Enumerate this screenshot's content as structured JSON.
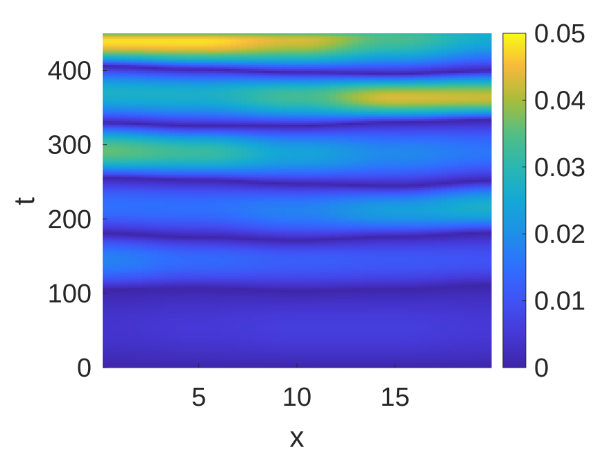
{
  "chart_data": {
    "type": "heatmap",
    "title": "",
    "xlabel": "x",
    "ylabel": "t",
    "xlim": [
      0.1,
      19.9
    ],
    "ylim": [
      0,
      450
    ],
    "xticks": [
      5,
      10,
      15
    ],
    "xtick_labels": [
      "5",
      "10",
      "15"
    ],
    "yticks": [
      0,
      100,
      200,
      300,
      400
    ],
    "ytick_labels": [
      "0",
      "100",
      "200",
      "300",
      "400"
    ],
    "colorbar": {
      "range": [
        0,
        0.05
      ],
      "ticks": [
        0,
        0.01,
        0.02,
        0.03,
        0.04,
        0.05
      ],
      "tick_labels": [
        "0",
        "0.01",
        "0.02",
        "0.03",
        "0.04",
        "0.05"
      ],
      "colormap": "parula"
    },
    "colormap_stops": [
      {
        "v": 0.0,
        "color": "#3e26a8"
      },
      {
        "v": 0.1,
        "color": "#4638d6"
      },
      {
        "v": 0.2,
        "color": "#4052f5"
      },
      {
        "v": 0.3,
        "color": "#2f6ffe"
      },
      {
        "v": 0.4,
        "color": "#1e8fe8"
      },
      {
        "v": 0.5,
        "color": "#14a8d6"
      },
      {
        "v": 0.6,
        "color": "#2ab7b2"
      },
      {
        "v": 0.7,
        "color": "#52be84"
      },
      {
        "v": 0.8,
        "color": "#a8bd3a"
      },
      {
        "v": 0.9,
        "color": "#f7b93c"
      },
      {
        "v": 1.0,
        "color": "#f9fb15"
      }
    ],
    "troughs": [
      {
        "x": [
          0,
          5,
          10,
          15,
          20
        ],
        "t": [
          0,
          0,
          0,
          0,
          0
        ]
      },
      {
        "x": [
          0,
          5,
          10,
          15,
          20
        ],
        "t": [
          106,
          108,
          104,
          106,
          112
        ]
      },
      {
        "x": [
          0,
          5,
          10,
          15,
          20
        ],
        "t": [
          181,
          176,
          172,
          177,
          182
        ]
      },
      {
        "x": [
          0,
          5,
          10,
          15,
          20
        ],
        "t": [
          256,
          253,
          248,
          245,
          252
        ]
      },
      {
        "x": [
          0,
          5,
          10,
          15,
          20
        ],
        "t": [
          330,
          326,
          326,
          331,
          334
        ]
      },
      {
        "x": [
          0,
          5,
          10,
          15,
          20
        ],
        "t": [
          406,
          402,
          398,
          396,
          400
        ]
      }
    ],
    "peaks": [
      {
        "x": [
          0,
          5,
          10,
          15,
          20
        ],
        "t": [
          55,
          55,
          55,
          55,
          55
        ],
        "v": [
          0.004,
          0.005,
          0.006,
          0.006,
          0.005
        ]
      },
      {
        "x": [
          0,
          5,
          10,
          15,
          20
        ],
        "t": [
          145,
          145,
          145,
          145,
          145
        ],
        "v": [
          0.018,
          0.014,
          0.012,
          0.011,
          0.01
        ]
      },
      {
        "x": [
          0,
          5,
          10,
          15,
          20
        ],
        "t": [
          218,
          216,
          212,
          212,
          216
        ],
        "v": [
          0.015,
          0.015,
          0.018,
          0.023,
          0.027
        ]
      },
      {
        "x": [
          0,
          5,
          10,
          15,
          20
        ],
        "t": [
          292,
          290,
          288,
          288,
          290
        ],
        "v": [
          0.036,
          0.032,
          0.024,
          0.019,
          0.016
        ]
      },
      {
        "x": [
          0,
          5,
          10,
          15,
          20
        ],
        "t": [
          370,
          368,
          366,
          364,
          364
        ],
        "v": [
          0.027,
          0.027,
          0.033,
          0.043,
          0.042
        ]
      },
      {
        "x": [
          0,
          5,
          10,
          15,
          20
        ],
        "t": [
          440,
          440,
          442,
          446,
          448
        ],
        "v": [
          0.048,
          0.048,
          0.043,
          0.034,
          0.026
        ]
      }
    ]
  }
}
